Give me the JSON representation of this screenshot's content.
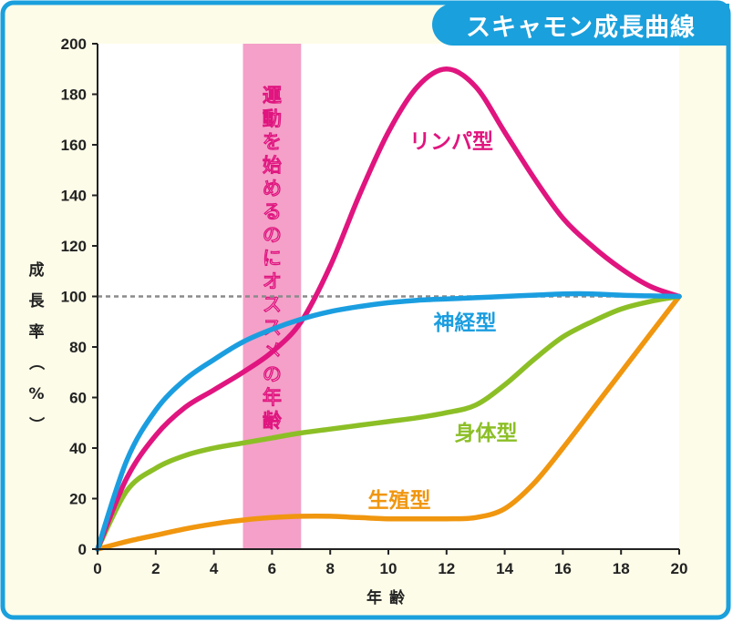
{
  "title": "スキャモン成長曲線",
  "chart_data": {
    "type": "line",
    "xlabel": "年齢",
    "ylabel": "成長率（%）",
    "xlim": [
      0,
      20
    ],
    "ylim": [
      0,
      200
    ],
    "xticks": [
      0,
      2,
      4,
      6,
      8,
      10,
      12,
      14,
      16,
      18,
      20
    ],
    "yticks": [
      0,
      20,
      40,
      60,
      80,
      100,
      120,
      140,
      160,
      180,
      200
    ],
    "reference_line": 100,
    "highlight_band": {
      "x_range": [
        5,
        7
      ],
      "label": "運動を始めるのにオススメの年齢"
    },
    "series": [
      {
        "name": "リンパ型",
        "color": "#e0157f",
        "x": [
          0,
          1,
          2,
          3,
          4,
          5,
          6,
          7,
          8,
          9,
          10,
          11,
          12,
          13,
          14,
          15,
          16,
          17,
          18,
          19,
          20
        ],
        "y": [
          0,
          28,
          45,
          56,
          63,
          70,
          78,
          90,
          112,
          140,
          165,
          183,
          190,
          183,
          165,
          147,
          131,
          120,
          111,
          104,
          100
        ]
      },
      {
        "name": "神経型",
        "color": "#1b9ee0",
        "x": [
          0,
          1,
          2,
          3,
          4,
          5,
          6,
          7,
          8,
          9,
          10,
          11,
          12,
          13,
          14,
          15,
          16,
          17,
          18,
          19,
          20
        ],
        "y": [
          0,
          35,
          55,
          67,
          75,
          82,
          87,
          91,
          94,
          96,
          97.5,
          98.5,
          99,
          99.5,
          100,
          100.5,
          101,
          101,
          100.5,
          100.2,
          100
        ]
      },
      {
        "name": "身体型",
        "color": "#8cbf26",
        "x": [
          0,
          1,
          2,
          3,
          4,
          5,
          6,
          7,
          8,
          9,
          10,
          11,
          12,
          13,
          14,
          15,
          16,
          17,
          18,
          19,
          20
        ],
        "y": [
          0,
          23,
          32,
          37,
          40,
          42,
          44,
          46,
          47.5,
          49,
          50.5,
          52,
          54,
          57,
          65,
          75,
          84,
          90,
          95,
          98,
          100
        ]
      },
      {
        "name": "生殖型",
        "color": "#f0960f",
        "x": [
          0,
          1,
          2,
          3,
          4,
          5,
          6,
          7,
          8,
          9,
          10,
          11,
          12,
          13,
          14,
          15,
          16,
          17,
          18,
          19,
          20
        ],
        "y": [
          0,
          3,
          5.5,
          8,
          10,
          11.5,
          12.5,
          13,
          13,
          12.5,
          12,
          12,
          12,
          12.5,
          16,
          26,
          40,
          55,
          70,
          85,
          100
        ]
      }
    ],
    "series_labels": [
      "リンパ型",
      "神経型",
      "身体型",
      "生殖型"
    ]
  }
}
